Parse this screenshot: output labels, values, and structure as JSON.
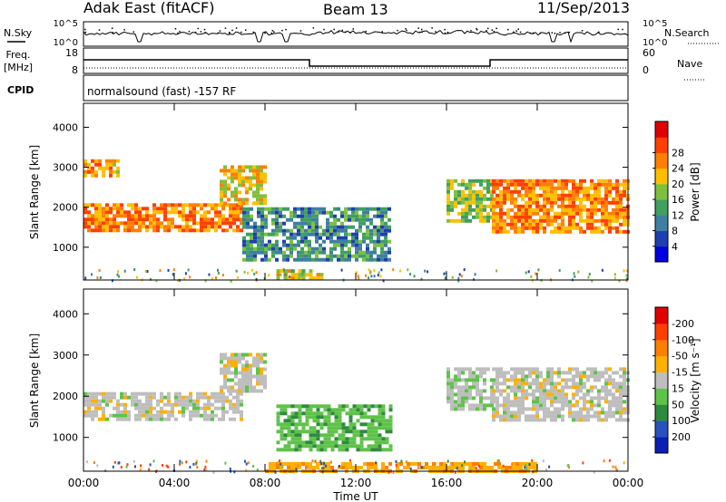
{
  "header": {
    "station": "Adak East (fitACF)",
    "beam": "Beam 13",
    "date": "11/Sep/2013"
  },
  "strips": {
    "nsky_label": "N.Sky",
    "nsearch_label": "N.Search",
    "freq_label": "Freq.",
    "freq_unit": "[MHz]",
    "nave_label": "Nave",
    "cpid_label": "CPID",
    "cpid_text": "normalsound (fast) -157 RF",
    "noise_ticks": [
      "10^5",
      "10^0"
    ],
    "freq_ticks": [
      "18",
      "8"
    ],
    "nave_ticks": [
      "60",
      "0"
    ]
  },
  "chart_data": [
    {
      "type": "heatmap",
      "title": "",
      "xlabel": "Time UT",
      "ylabel": "Slant Range [km]",
      "x_ticks": [
        "00:00",
        "04:00",
        "08:00",
        "12:00",
        "16:00",
        "20:00",
        "00:00"
      ],
      "x_range_hours": [
        0,
        24
      ],
      "ylim": [
        180,
        4600
      ],
      "y_ticks": [
        1000,
        2000,
        3000,
        4000
      ],
      "colorbar": {
        "label": "Power [dB]",
        "ticks": [
          4,
          8,
          12,
          16,
          20,
          24,
          28
        ],
        "colors": [
          "#0000e0",
          "#1f3fb0",
          "#3f7fa0",
          "#3fa05f",
          "#7fbf3f",
          "#ffbf00",
          "#ff7f00",
          "#ff3f00",
          "#e00000"
        ]
      },
      "echo_regions": [
        {
          "t_start": 0.0,
          "t_end": 7.0,
          "range_low": 1400,
          "range_high": 2100,
          "value": 26
        },
        {
          "t_start": 0.0,
          "t_end": 1.6,
          "range_low": 2750,
          "range_high": 3200,
          "value": 24
        },
        {
          "t_start": 6.0,
          "t_end": 8.0,
          "range_low": 2100,
          "range_high": 3050,
          "value": 22
        },
        {
          "t_start": 7.0,
          "t_end": 13.5,
          "range_low": 700,
          "range_high": 2000,
          "value": 12
        },
        {
          "t_start": 8.5,
          "t_end": 10.5,
          "range_low": 250,
          "range_high": 450,
          "value": 20
        },
        {
          "t_start": 16.0,
          "t_end": 18.0,
          "range_low": 1700,
          "range_high": 2700,
          "value": 18
        },
        {
          "t_start": 18.0,
          "t_end": 24.0,
          "range_low": 1400,
          "range_high": 2700,
          "value": 26
        }
      ]
    },
    {
      "type": "heatmap",
      "title": "",
      "xlabel": "Time UT",
      "ylabel": "Slant Range [km]",
      "x_ticks": [
        "00:00",
        "04:00",
        "08:00",
        "12:00",
        "16:00",
        "20:00",
        "00:00"
      ],
      "x_range_hours": [
        0,
        24
      ],
      "ylim": [
        180,
        4600
      ],
      "y_ticks": [
        1000,
        2000,
        3000,
        4000
      ],
      "colorbar": {
        "label": "Velocity [m s⁻¹]",
        "ticks": [
          200,
          100,
          50,
          15,
          -15,
          -50,
          -100,
          -200
        ],
        "colors": [
          "#0a1fb4",
          "#2a52be",
          "#2e8b3e",
          "#5fc24a",
          "#bebebe",
          "#ffb000",
          "#ff7f00",
          "#ff3f00",
          "#e00000"
        ]
      },
      "echo_regions": [
        {
          "t_start": 0.0,
          "t_end": 7.0,
          "range_low": 1400,
          "range_high": 2100,
          "value": 0
        },
        {
          "t_start": 6.0,
          "t_end": 8.0,
          "range_low": 2100,
          "range_high": 3050,
          "value": 0
        },
        {
          "t_start": 8.5,
          "t_end": 13.5,
          "range_low": 700,
          "range_high": 1800,
          "value": 40
        },
        {
          "t_start": 8.0,
          "t_end": 20.0,
          "range_low": 180,
          "range_high": 400,
          "value": -40
        },
        {
          "t_start": 16.0,
          "t_end": 18.0,
          "range_low": 1700,
          "range_high": 2700,
          "value": 5
        },
        {
          "t_start": 18.0,
          "t_end": 24.0,
          "range_low": 1400,
          "range_high": 2700,
          "value": 0
        }
      ]
    }
  ]
}
